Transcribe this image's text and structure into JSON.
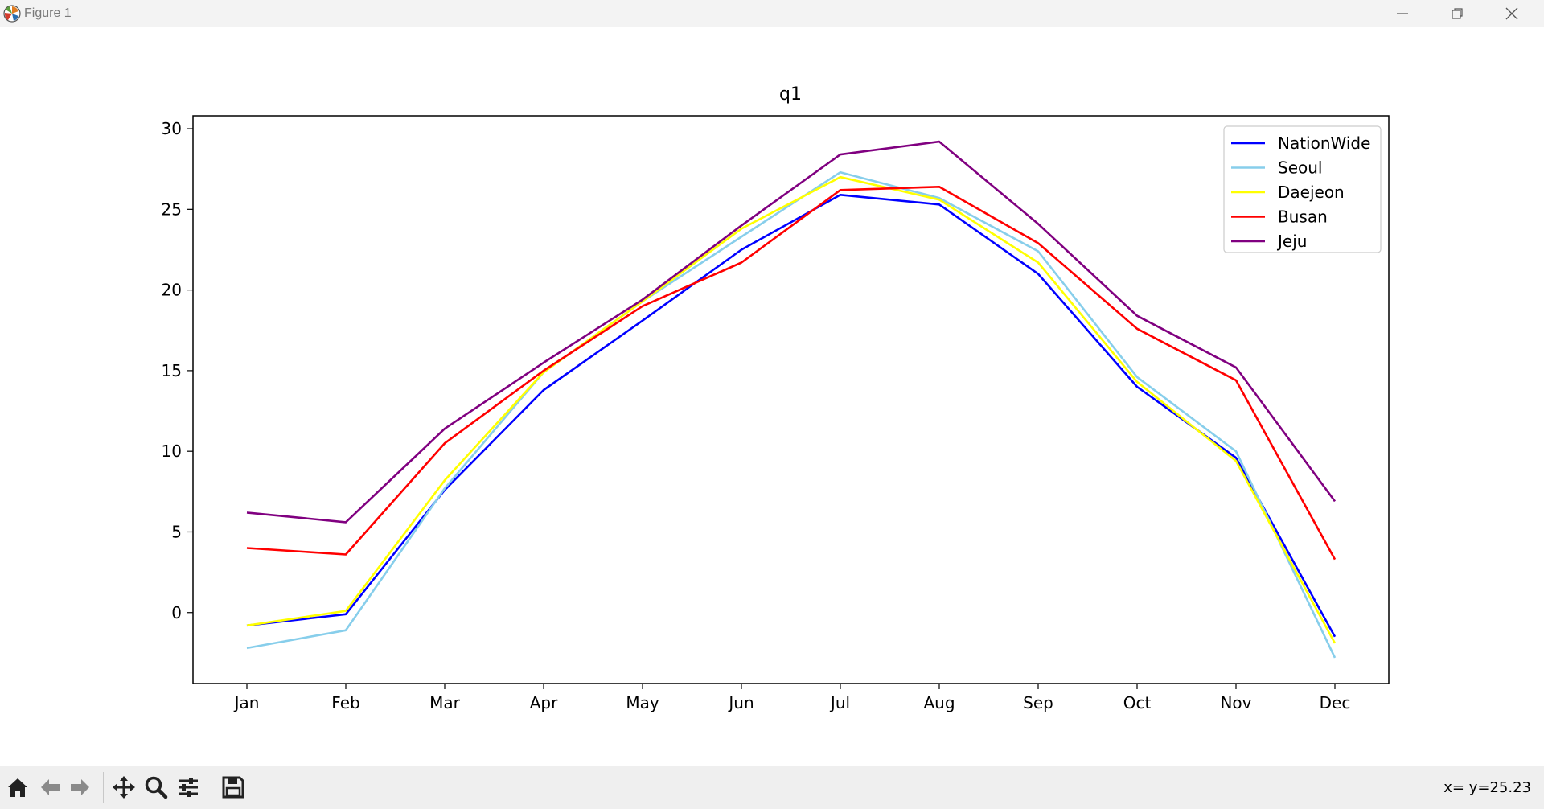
{
  "window": {
    "title": "Figure 1",
    "buttons": {
      "minimize": "minimize-icon",
      "maximize": "restore-icon",
      "close": "close-icon"
    }
  },
  "toolbar": {
    "buttons": [
      "home-icon",
      "back-icon",
      "forward-icon",
      "pan-icon",
      "zoom-icon",
      "configure-subplots-icon",
      "save-icon"
    ],
    "coords_text": "x= y=25.23"
  },
  "colors": {
    "NationWide": "#0000ff",
    "Seoul": "#87ceeb",
    "Daejeon": "#ffff00",
    "Busan": "#ff0000",
    "Jeju": "#800080"
  },
  "chart_data": {
    "type": "line",
    "title": "q1",
    "xlabel": "",
    "ylabel": "",
    "categories": [
      "Jan",
      "Feb",
      "Mar",
      "Apr",
      "May",
      "Jun",
      "Jul",
      "Aug",
      "Sep",
      "Oct",
      "Nov",
      "Dec"
    ],
    "yticks": [
      0,
      5,
      10,
      15,
      20,
      25,
      30
    ],
    "ylim": [
      -4.4,
      30.8
    ],
    "grid": false,
    "legend_position": "top-right",
    "series": [
      {
        "name": "NationWide",
        "color": "#0000ff",
        "values": [
          -0.8,
          -0.1,
          7.6,
          13.8,
          18.1,
          22.5,
          25.9,
          25.3,
          21.0,
          14.0,
          9.6,
          -1.5
        ]
      },
      {
        "name": "Seoul",
        "color": "#87ceeb",
        "values": [
          -2.2,
          -1.1,
          7.7,
          14.9,
          19.3,
          23.3,
          27.3,
          25.7,
          22.4,
          14.6,
          10.0,
          -2.8
        ]
      },
      {
        "name": "Daejeon",
        "color": "#ffff00",
        "values": [
          -0.8,
          0.1,
          8.2,
          14.9,
          19.3,
          23.8,
          27.0,
          25.6,
          21.7,
          14.3,
          9.4,
          -1.9
        ]
      },
      {
        "name": "Busan",
        "color": "#ff0000",
        "values": [
          4.0,
          3.6,
          10.5,
          15.0,
          19.0,
          21.7,
          26.2,
          26.4,
          22.9,
          17.6,
          14.4,
          3.3
        ]
      },
      {
        "name": "Jeju",
        "color": "#800080",
        "values": [
          6.2,
          5.6,
          11.4,
          15.5,
          19.4,
          24.0,
          28.4,
          29.2,
          24.1,
          18.4,
          15.2,
          6.9
        ]
      }
    ]
  }
}
